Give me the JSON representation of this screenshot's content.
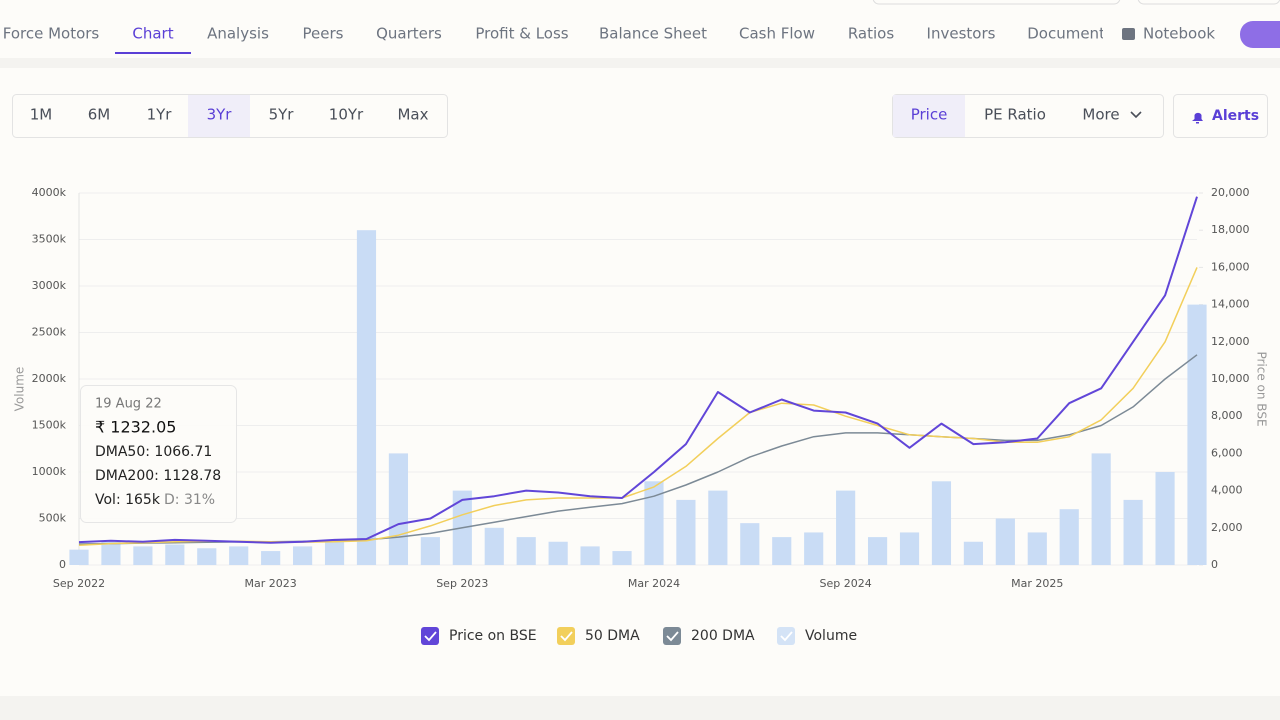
{
  "nav": {
    "tabs": [
      "Force Motors",
      "Chart",
      "Analysis",
      "Peers",
      "Quarters",
      "Profit & Loss",
      "Balance Sheet",
      "Cash Flow",
      "Ratios",
      "Investors",
      "Documents"
    ],
    "notebook": "Notebook"
  },
  "range_buttons": [
    "1M",
    "6M",
    "1Yr",
    "3Yr",
    "5Yr",
    "10Yr",
    "Max"
  ],
  "view_buttons": [
    "Price",
    "PE Ratio",
    "More"
  ],
  "alerts": "Alerts",
  "tooltip": {
    "date": "19 Aug 22",
    "price": "₹ 1232.05",
    "dma50": "DMA50: 1066.71",
    "dma200": "DMA200: 1128.78",
    "volume": "Vol: 165k",
    "delivery": "D: 31%"
  },
  "chart_data": {
    "type": "combo",
    "categories": [
      "Sep 2022",
      null,
      null,
      null,
      null,
      null,
      "Mar 2023",
      null,
      null,
      null,
      null,
      null,
      "Sep 2023",
      null,
      null,
      null,
      null,
      null,
      "Mar 2024",
      null,
      null,
      null,
      null,
      null,
      "Sep 2024",
      null,
      null,
      null,
      null,
      null,
      "Mar 2025",
      null,
      null,
      null,
      null,
      null
    ],
    "y_label": "Volume",
    "y2_label": "Price on BSE",
    "ylim": [
      0,
      4000
    ],
    "yticks": [
      0,
      {
        "value": 500,
        "label": "500k"
      },
      {
        "value": 1000,
        "label": "1000k"
      },
      {
        "value": 1500,
        "label": "1500k"
      },
      {
        "value": 2000,
        "label": "2000k"
      },
      {
        "value": 2500,
        "label": "2500k"
      },
      {
        "value": 3000,
        "label": "3000k"
      },
      {
        "value": 3500,
        "label": "3500k"
      },
      {
        "value": 4000,
        "label": "4000k"
      }
    ],
    "y2lim": [
      0,
      20000
    ],
    "y2ticks": [
      0,
      {
        "value": 2000,
        "label": "2,000"
      },
      {
        "value": 4000,
        "label": "4,000"
      },
      {
        "value": 6000,
        "label": "6,000"
      },
      {
        "value": 8000,
        "label": "8,000"
      },
      {
        "value": 10000,
        "label": "10,000"
      },
      {
        "value": 12000,
        "label": "12,000"
      },
      {
        "value": 14000,
        "label": "14,000"
      },
      {
        "value": 16000,
        "label": "16,000"
      },
      {
        "value": 18000,
        "label": "18,000"
      },
      {
        "value": 20000,
        "label": "20,000"
      }
    ],
    "grid": true,
    "series": [
      {
        "name": "Volume",
        "type": "bar",
        "axis": "y",
        "color": "#c9dcf5",
        "values": [
          165,
          250,
          200,
          220,
          180,
          200,
          150,
          200,
          250,
          3600,
          1200,
          300,
          800,
          400,
          300,
          250,
          200,
          150,
          900,
          700,
          800,
          450,
          300,
          350,
          800,
          300,
          350,
          900,
          250,
          500,
          350,
          600,
          1200,
          700,
          1000,
          2800
        ]
      },
      {
        "name": "200 DMA",
        "type": "line",
        "axis": "y2",
        "color": "#7c8a96",
        "values": [
          1128.78,
          1150,
          1180,
          1200,
          1220,
          1240,
          1250,
          1270,
          1300,
          1350,
          1500,
          1700,
          2000,
          2300,
          2600,
          2900,
          3100,
          3300,
          3700,
          4300,
          5000,
          5800,
          6400,
          6900,
          7100,
          7100,
          7000,
          6900,
          6800,
          6700,
          6700,
          7000,
          7500,
          8500,
          10000,
          11300
        ]
      },
      {
        "name": "50 DMA",
        "type": "line",
        "axis": "y2",
        "color": "#f2cf5b",
        "values": [
          1066.71,
          1150,
          1200,
          1250,
          1280,
          1280,
          1250,
          1230,
          1250,
          1300,
          1600,
          2100,
          2700,
          3200,
          3500,
          3600,
          3600,
          3600,
          4200,
          5300,
          6800,
          8200,
          8700,
          8600,
          8000,
          7500,
          7000,
          6900,
          6800,
          6600,
          6600,
          6900,
          7800,
          9500,
          12000,
          16000
        ]
      },
      {
        "name": "Price on BSE",
        "type": "line",
        "axis": "y2",
        "color": "#6146d8",
        "values": [
          1232.05,
          1300,
          1250,
          1350,
          1300,
          1250,
          1200,
          1250,
          1350,
          1400,
          2200,
          2500,
          3500,
          3700,
          4000,
          3900,
          3700,
          3600,
          5000,
          6500,
          9300,
          8200,
          8900,
          8300,
          8200,
          7600,
          6300,
          7600,
          6500,
          6600,
          6800,
          8700,
          9500,
          12000,
          14500,
          19800
        ]
      }
    ]
  }
}
